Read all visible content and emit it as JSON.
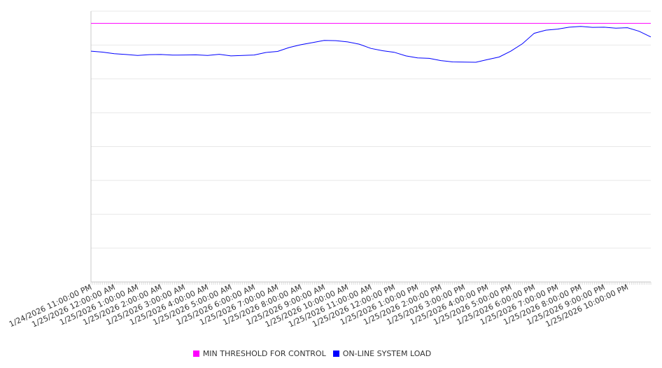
{
  "chart_data": {
    "type": "line",
    "title": "",
    "xlabel": "",
    "ylabel": "",
    "ylim": [
      0,
      8
    ],
    "grid": true,
    "legend_position": "bottom",
    "x_tick_labels": [
      "1/24/2026 11:00:00 PM",
      "1/25/2026 12:00:00 AM",
      "1/25/2026 1:00:00 AM",
      "1/25/2026 2:00:00 AM",
      "1/25/2026 3:00:00 AM",
      "1/25/2026 4:00:00 AM",
      "1/25/2026 5:00:00 AM",
      "1/25/2026 6:00:00 AM",
      "1/25/2026 7:00:00 AM",
      "1/25/2026 8:00:00 AM",
      "1/25/2026 9:00:00 AM",
      "1/25/2026 10:00:00 AM",
      "1/25/2026 11:00:00 AM",
      "1/25/2026 12:00:00 PM",
      "1/25/2026 1:00:00 PM",
      "1/25/2026 2:00:00 PM",
      "1/25/2026 3:00:00 PM",
      "1/25/2026 4:00:00 PM",
      "1/25/2026 5:00:00 PM",
      "1/25/2026 6:00:00 PM",
      "1/25/2026 7:00:00 PM",
      "1/25/2026 8:00:00 PM",
      "1/25/2026 9:00:00 PM",
      "1/25/2026 10:00:00 PM"
    ],
    "x_hours": [
      0,
      0.5,
      1,
      1.5,
      2,
      2.5,
      3,
      3.5,
      4,
      4.5,
      5,
      5.5,
      6,
      6.5,
      7,
      7.5,
      8,
      8.5,
      9,
      9.5,
      10,
      10.5,
      11,
      11.5,
      12,
      12.5,
      13,
      13.5,
      14,
      14.5,
      15,
      15.5,
      16,
      16.5,
      17,
      17.5,
      18,
      18.5,
      19,
      19.5,
      20,
      20.5,
      21,
      21.5,
      22,
      22.5,
      23,
      23.5,
      24
    ],
    "series": [
      {
        "name": "MIN THRESHOLD FOR CONTROL",
        "color": "#ff00ff",
        "constant": 7.64
      },
      {
        "name": "ON-LINE SYSTEM LOAD",
        "color": "#0000ff",
        "values": [
          6.82,
          6.8,
          6.74,
          6.72,
          6.7,
          6.71,
          6.72,
          6.71,
          6.7,
          6.71,
          6.7,
          6.72,
          6.68,
          6.7,
          6.7,
          6.78,
          6.82,
          6.92,
          7.01,
          7.08,
          7.13,
          7.13,
          7.1,
          7.02,
          6.9,
          6.84,
          6.78,
          6.68,
          6.63,
          6.6,
          6.54,
          6.51,
          6.49,
          6.49,
          6.58,
          6.64,
          6.82,
          7.05,
          7.34,
          7.44,
          7.48,
          7.52,
          7.55,
          7.53,
          7.52,
          7.5,
          7.52,
          7.4,
          7.24
        ]
      }
    ]
  }
}
